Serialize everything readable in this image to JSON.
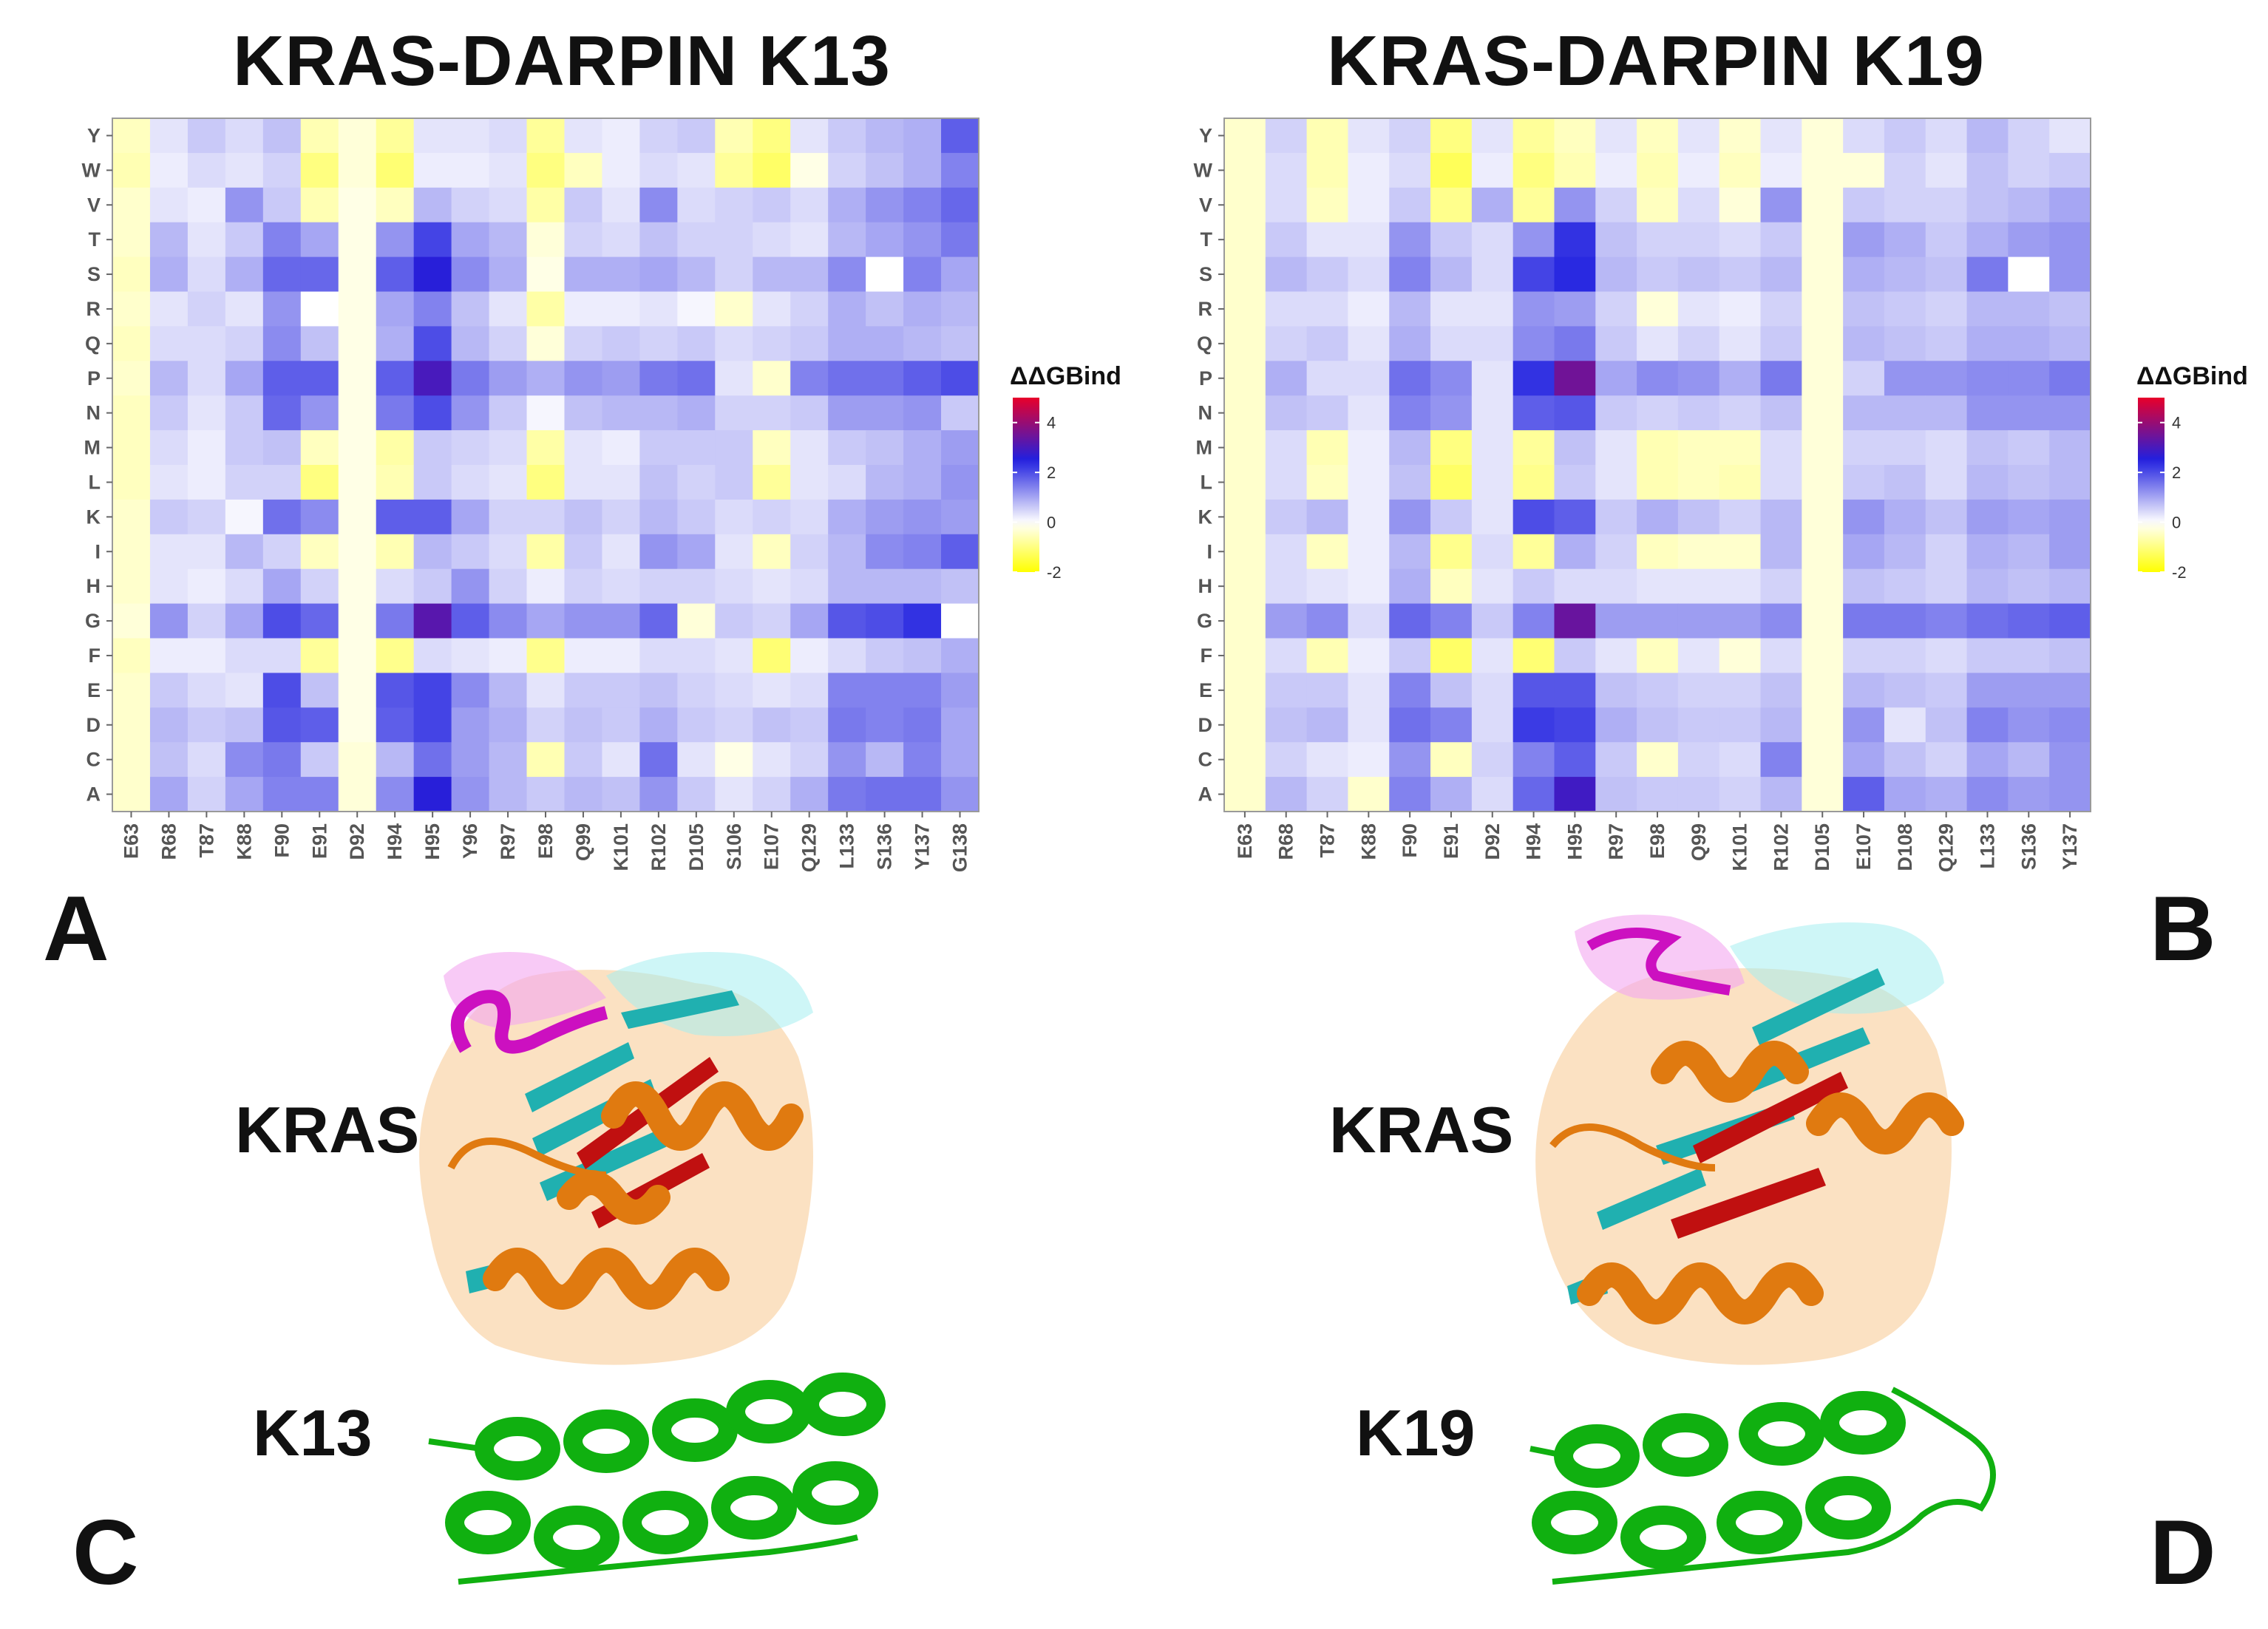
{
  "chart_data": [
    {
      "type": "heatmap",
      "title": "KRAS-DARPIN K13",
      "panel_label": "A",
      "x": [
        "E63",
        "R68",
        "T87",
        "K88",
        "F90",
        "E91",
        "D92",
        "H94",
        "H95",
        "Y96",
        "R97",
        "E98",
        "Q99",
        "K101",
        "R102",
        "D105",
        "S106",
        "E107",
        "Q129",
        "L133",
        "S136",
        "Y137",
        "G138"
      ],
      "y": [
        "Y",
        "W",
        "V",
        "T",
        "S",
        "R",
        "Q",
        "P",
        "N",
        "M",
        "L",
        "K",
        "I",
        "H",
        "G",
        "F",
        "E",
        "D",
        "C",
        "A"
      ],
      "z": [
        [
          -0.5,
          0.3,
          0.6,
          0.4,
          0.7,
          -0.6,
          -0.3,
          -0.8,
          0.3,
          0.3,
          0.4,
          -0.8,
          0.3,
          0.2,
          0.5,
          0.6,
          -0.6,
          -1,
          0.3,
          0.6,
          0.8,
          0.9,
          1.8
        ],
        [
          -0.6,
          0.2,
          0.4,
          0.3,
          0.5,
          -1,
          -0.3,
          -1.1,
          0.2,
          0.2,
          0.3,
          -1,
          -0.5,
          0.2,
          0.4,
          0.3,
          -0.8,
          -1.2,
          -0.2,
          0.5,
          0.7,
          0.9,
          1.4
        ],
        [
          -0.4,
          0.3,
          0.2,
          1.2,
          0.6,
          -0.6,
          -0.2,
          -0.5,
          0.8,
          0.5,
          0.4,
          -0.7,
          0.6,
          0.3,
          1.3,
          0.4,
          0.5,
          0.6,
          0.4,
          0.9,
          1.2,
          1.4,
          1.7
        ],
        [
          -0.4,
          0.8,
          0.3,
          0.6,
          1.4,
          1,
          -0.2,
          1.2,
          2.1,
          1,
          0.8,
          -0.3,
          0.5,
          0.4,
          0.7,
          0.5,
          0.5,
          0.4,
          0.3,
          0.8,
          1,
          1.2,
          1.5
        ],
        [
          -0.5,
          0.9,
          0.4,
          0.9,
          1.7,
          1.7,
          -0.2,
          1.8,
          2.6,
          1.3,
          0.9,
          -0.2,
          0.9,
          0.9,
          1,
          0.8,
          0.5,
          0.8,
          0.8,
          1.3,
          0,
          1.4,
          1
        ],
        [
          -0.4,
          0.3,
          0.5,
          0.3,
          1.2,
          0,
          -0.2,
          1,
          1.4,
          0.7,
          0.3,
          -0.7,
          0.2,
          0.2,
          0.3,
          0.1,
          -0.4,
          0.3,
          0.5,
          0.9,
          0.7,
          0.9,
          0.8
        ],
        [
          -0.5,
          0.4,
          0.4,
          0.5,
          1.3,
          0.7,
          -0.2,
          0.9,
          2,
          0.8,
          0.5,
          -0.3,
          0.5,
          0.6,
          0.5,
          0.6,
          0.4,
          0.5,
          0.6,
          0.9,
          0.9,
          0.8,
          0.7
        ],
        [
          -0.4,
          0.8,
          0.4,
          1,
          1.8,
          1.8,
          -0.2,
          1.8,
          3,
          1.5,
          1.1,
          0.9,
          1.2,
          1.1,
          1.5,
          1.6,
          0.3,
          -0.4,
          1.4,
          1.6,
          1.6,
          1.8,
          2
        ],
        [
          -0.5,
          0.6,
          0.3,
          0.6,
          1.7,
          1.2,
          -0.2,
          1.5,
          2,
          1.2,
          0.6,
          0.1,
          0.7,
          0.8,
          0.8,
          0.9,
          0.5,
          0.5,
          0.6,
          1.1,
          1.1,
          1.2,
          0.6
        ],
        [
          -0.5,
          0.4,
          0.2,
          0.6,
          0.7,
          -0.5,
          -0.2,
          -0.7,
          0.6,
          0.5,
          0.4,
          -0.7,
          0.3,
          0.2,
          0.6,
          0.6,
          0.6,
          -0.5,
          0.3,
          0.6,
          0.7,
          0.9,
          1.1
        ],
        [
          -0.5,
          0.3,
          0.2,
          0.5,
          0.5,
          -1,
          -0.2,
          -0.6,
          0.6,
          0.4,
          0.3,
          -1,
          0.3,
          0.3,
          0.7,
          0.5,
          0.6,
          -0.8,
          0.3,
          0.4,
          0.8,
          0.9,
          1.2
        ],
        [
          -0.4,
          0.6,
          0.5,
          0.1,
          1.6,
          1.3,
          -0.2,
          1.8,
          1.8,
          1,
          0.5,
          0.5,
          0.7,
          0.5,
          0.8,
          0.6,
          0.4,
          0.5,
          0.4,
          0.9,
          1.1,
          1.2,
          1.1
        ],
        [
          -0.4,
          0.3,
          0.3,
          0.8,
          0.5,
          -0.5,
          -0.2,
          -0.6,
          0.8,
          0.6,
          0.4,
          -0.7,
          0.6,
          0.3,
          1.2,
          1,
          0.3,
          -0.5,
          0.5,
          0.8,
          1.3,
          1.4,
          1.8
        ],
        [
          -0.4,
          0.3,
          0.2,
          0.4,
          1,
          0.5,
          -0.2,
          0.4,
          0.6,
          1.2,
          0.5,
          0.2,
          0.5,
          0.4,
          0.5,
          0.5,
          0.4,
          0.3,
          0.4,
          0.8,
          0.8,
          0.8,
          0.7
        ],
        [
          -0.3,
          1.2,
          0.5,
          1,
          2,
          1.7,
          -0.2,
          1.5,
          3.2,
          1.8,
          1.3,
          1,
          1.2,
          1.2,
          1.7,
          -0.3,
          0.6,
          0.5,
          1,
          1.9,
          2,
          2.3,
          0
        ],
        [
          -0.5,
          0.2,
          0.2,
          0.4,
          0.4,
          -0.8,
          -0.2,
          -0.9,
          0.4,
          0.3,
          0.2,
          -0.9,
          0.2,
          0.2,
          0.4,
          0.4,
          0.3,
          -1.1,
          0.2,
          0.4,
          0.6,
          0.7,
          0.9
        ],
        [
          -0.4,
          0.6,
          0.4,
          0.3,
          2,
          0.7,
          -0.2,
          1.9,
          2.1,
          1.3,
          0.8,
          0.3,
          0.6,
          0.6,
          0.7,
          0.5,
          0.4,
          0.3,
          0.4,
          1.4,
          1.4,
          1.4,
          1.1
        ],
        [
          -0.4,
          0.8,
          0.6,
          0.7,
          1.9,
          1.8,
          -0.2,
          1.8,
          2.1,
          1.1,
          0.9,
          0.5,
          0.7,
          0.6,
          0.9,
          0.6,
          0.5,
          0.7,
          0.6,
          1.5,
          1.4,
          1.5,
          1
        ],
        [
          -0.4,
          0.7,
          0.4,
          1.3,
          1.5,
          0.6,
          -0.3,
          0.8,
          1.6,
          1.1,
          0.8,
          -0.6,
          0.6,
          0.3,
          1.6,
          0.3,
          -0.2,
          0.3,
          0.5,
          1.2,
          0.8,
          1.4,
          1
        ],
        [
          -0.4,
          1,
          0.5,
          1,
          1.4,
          1.4,
          -0.3,
          1.3,
          2.6,
          1.2,
          0.8,
          0.6,
          0.8,
          0.7,
          1.2,
          0.6,
          0.3,
          0.5,
          0.9,
          1.5,
          1.6,
          1.6,
          1.2
        ]
      ],
      "colorbar": {
        "title": "ΔΔGBind",
        "ticks": [
          "4",
          "2",
          "0",
          "-2"
        ],
        "range": [
          -2,
          5
        ],
        "colors": {
          "low": "#ffff00",
          "zero": "#ffffff",
          "mid": "#2020e0",
          "high": "#e8002a"
        }
      }
    },
    {
      "type": "heatmap",
      "title": "KRAS-DARPIN K19",
      "panel_label": "B",
      "x": [
        "E63",
        "R68",
        "T87",
        "K88",
        "F90",
        "E91",
        "D92",
        "H94",
        "H95",
        "R97",
        "E98",
        "Q99",
        "K101",
        "R102",
        "D105",
        "E107",
        "D108",
        "Q129",
        "L133",
        "S136",
        "Y137"
      ],
      "y": [
        "Y",
        "W",
        "V",
        "T",
        "S",
        "R",
        "Q",
        "P",
        "N",
        "M",
        "L",
        "K",
        "I",
        "H",
        "G",
        "F",
        "E",
        "D",
        "C",
        "A"
      ],
      "z": [
        [
          -0.4,
          0.5,
          -0.6,
          0.3,
          0.5,
          -1,
          0.3,
          -0.8,
          -0.5,
          0.3,
          -0.5,
          0.3,
          -0.4,
          0.3,
          -0.3,
          0.4,
          0.6,
          0.4,
          0.8,
          0.5,
          0.3
        ],
        [
          -0.4,
          0.4,
          -0.6,
          0.2,
          0.4,
          -1.3,
          0.2,
          -1,
          -0.6,
          0.2,
          -0.6,
          0.2,
          -0.5,
          0.2,
          -0.3,
          -0.3,
          0.5,
          0.3,
          0.7,
          0.5,
          0.6
        ],
        [
          -0.4,
          0.4,
          -0.5,
          0.2,
          0.6,
          -0.9,
          0.9,
          -0.8,
          1.2,
          0.5,
          -0.5,
          0.4,
          -0.3,
          1.2,
          -0.3,
          0.6,
          0.5,
          0.5,
          0.7,
          0.8,
          1
        ],
        [
          -0.4,
          0.6,
          0.3,
          0.3,
          1.2,
          0.6,
          0.4,
          1.2,
          2.3,
          0.7,
          0.5,
          0.5,
          0.4,
          0.6,
          -0.3,
          1.1,
          0.9,
          0.6,
          0.9,
          1.1,
          1.2
        ],
        [
          -0.4,
          0.8,
          0.6,
          0.4,
          1.4,
          0.8,
          0.4,
          2.1,
          2.4,
          0.8,
          0.6,
          0.7,
          0.6,
          0.8,
          -0.3,
          0.9,
          0.8,
          0.7,
          1.5,
          0,
          1.2
        ],
        [
          -0.4,
          0.4,
          0.4,
          0.2,
          0.8,
          0.3,
          0.3,
          1.2,
          1.1,
          0.5,
          -0.3,
          0.3,
          0.2,
          0.5,
          -0.3,
          0.7,
          0.6,
          0.5,
          0.8,
          0.8,
          0.7
        ],
        [
          -0.4,
          0.5,
          0.6,
          0.3,
          0.9,
          0.4,
          0.4,
          1.3,
          1.5,
          0.6,
          0.3,
          0.5,
          0.3,
          0.6,
          -0.3,
          0.8,
          0.7,
          0.6,
          0.9,
          0.9,
          0.8
        ],
        [
          -0.4,
          0.9,
          0.4,
          0.4,
          1.6,
          1.3,
          0.3,
          2.3,
          3.5,
          1,
          1.3,
          1.2,
          0.9,
          1.5,
          -0.3,
          0.5,
          1.2,
          1.2,
          1.3,
          1.3,
          1.5
        ],
        [
          -0.4,
          0.7,
          0.6,
          0.3,
          1.4,
          1.2,
          0.3,
          1.8,
          1.9,
          0.6,
          0.5,
          0.6,
          0.5,
          0.7,
          -0.3,
          0.8,
          0.8,
          0.8,
          1.2,
          1.2,
          1.2
        ],
        [
          -0.4,
          0.4,
          -0.6,
          0.2,
          0.8,
          -1,
          0.3,
          -0.8,
          0.7,
          0.3,
          -0.6,
          -0.5,
          -0.5,
          0.4,
          -0.3,
          0.5,
          0.5,
          0.4,
          0.7,
          0.6,
          0.8
        ],
        [
          -0.4,
          0.4,
          -0.5,
          0.2,
          0.7,
          -1.2,
          0.3,
          -0.9,
          0.6,
          0.3,
          -0.6,
          -0.5,
          -0.6,
          0.4,
          -0.3,
          0.6,
          0.7,
          0.4,
          0.8,
          0.7,
          0.8
        ],
        [
          -0.4,
          0.6,
          0.8,
          0.2,
          1.2,
          0.6,
          0.3,
          2,
          1.8,
          0.6,
          0.9,
          0.7,
          0.5,
          0.8,
          -0.3,
          1.2,
          0.9,
          0.7,
          1.1,
          1,
          1.1
        ],
        [
          -0.4,
          0.4,
          -0.5,
          0.2,
          0.8,
          -0.9,
          0.4,
          -0.8,
          0.9,
          0.5,
          -0.5,
          -0.4,
          -0.4,
          0.8,
          -0.3,
          1,
          0.8,
          0.5,
          0.9,
          0.8,
          1.1
        ],
        [
          -0.4,
          0.4,
          0.3,
          0.2,
          0.9,
          -0.5,
          0.3,
          0.6,
          0.4,
          0.4,
          0.3,
          0.3,
          0.3,
          0.5,
          -0.3,
          0.7,
          0.6,
          0.5,
          0.8,
          0.7,
          0.8
        ],
        [
          -0.4,
          1.1,
          1.3,
          0.4,
          1.7,
          1.4,
          0.6,
          1.4,
          3.4,
          1.1,
          1.1,
          1.1,
          1.1,
          1.3,
          -0.3,
          1.5,
          1.5,
          1.4,
          1.6,
          1.7,
          1.8
        ],
        [
          -0.4,
          0.4,
          -0.6,
          0.2,
          0.6,
          -1.2,
          0.3,
          -1.1,
          0.6,
          0.3,
          -0.5,
          0.3,
          -0.3,
          0.4,
          -0.3,
          0.5,
          0.5,
          0.4,
          0.6,
          0.6,
          0.7
        ],
        [
          -0.4,
          0.6,
          0.6,
          0.3,
          1.4,
          0.7,
          0.4,
          1.9,
          1.9,
          0.7,
          0.6,
          0.5,
          0.5,
          0.7,
          -0.3,
          0.8,
          0.7,
          0.6,
          1.1,
          1.1,
          1.1
        ],
        [
          -0.4,
          0.7,
          0.8,
          0.3,
          1.6,
          1.4,
          0.4,
          2.2,
          2.1,
          0.9,
          0.7,
          0.6,
          0.6,
          0.8,
          -0.3,
          1.2,
          0.3,
          0.7,
          1.4,
          1.2,
          1.3
        ],
        [
          -0.4,
          0.5,
          0.3,
          0.2,
          1.2,
          -0.5,
          0.5,
          1.4,
          1.8,
          0.6,
          -0.4,
          0.5,
          0.4,
          1.4,
          -0.3,
          1,
          0.7,
          0.5,
          1,
          0.8,
          1.2
        ],
        [
          -0.4,
          0.8,
          0.5,
          -0.4,
          1.4,
          0.9,
          0.4,
          1.7,
          2.9,
          0.7,
          0.6,
          0.6,
          0.5,
          0.8,
          -0.3,
          1.8,
          1,
          0.9,
          1.3,
          1.1,
          1.2
        ]
      ],
      "colorbar": {
        "title": "ΔΔGBind",
        "ticks": [
          "4",
          "2",
          "0",
          "-2"
        ],
        "range": [
          -2,
          5
        ],
        "colors": {
          "low": "#ffff00",
          "zero": "#ffffff",
          "mid": "#2020e0",
          "high": "#e8002a"
        }
      }
    }
  ],
  "structures": [
    {
      "panel_label": "C",
      "protein_label": "KRAS",
      "binder_label": "K13",
      "colors": {
        "kras_helix": "#e07a10",
        "kras_sheet": "#20b0b0",
        "kras_red": "#c01010",
        "loop": "#cc10c0",
        "kras_surface": "#f8c890",
        "darpin": "#10b010"
      }
    },
    {
      "panel_label": "D",
      "protein_label": "KRAS",
      "binder_label": "K19",
      "colors": {
        "kras_helix": "#e07a10",
        "kras_sheet": "#20b0b0",
        "kras_red": "#c01010",
        "loop": "#cc10c0",
        "kras_surface": "#f8c890",
        "darpin": "#10b010"
      }
    }
  ]
}
